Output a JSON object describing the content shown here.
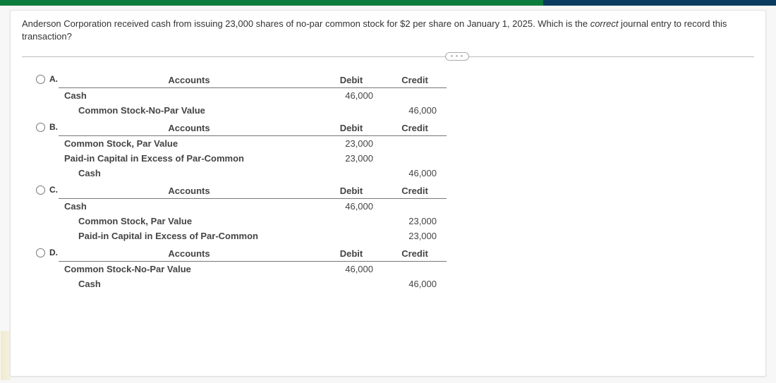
{
  "question": {
    "prefix": "Anderson Corporation received cash from issuing 23,000 shares of no-par common stock for $2 per share on January 1, 2025. Which is the ",
    "italic": "correct",
    "suffix": " journal entry to record this transaction?"
  },
  "divider_pill": "• • •",
  "headers": {
    "accounts": "Accounts",
    "debit": "Debit",
    "credit": "Credit"
  },
  "options": [
    {
      "letter": "A.",
      "rows": [
        {
          "acc": "Cash",
          "indent": 1,
          "debit": "46,000",
          "credit": ""
        },
        {
          "acc": "Common Stock-No-Par Value",
          "indent": 2,
          "debit": "",
          "credit": "46,000"
        }
      ]
    },
    {
      "letter": "B.",
      "rows": [
        {
          "acc": "Common Stock, Par Value",
          "indent": 1,
          "debit": "23,000",
          "credit": ""
        },
        {
          "acc": "Paid-in Capital in Excess of Par-Common",
          "indent": 1,
          "debit": "23,000",
          "credit": ""
        },
        {
          "acc": "Cash",
          "indent": 2,
          "debit": "",
          "credit": "46,000"
        }
      ]
    },
    {
      "letter": "C.",
      "rows": [
        {
          "acc": "Cash",
          "indent": 1,
          "debit": "46,000",
          "credit": ""
        },
        {
          "acc": "Common Stock, Par Value",
          "indent": 2,
          "debit": "",
          "credit": "23,000"
        },
        {
          "acc": "Paid-in Capital in Excess of Par-Common",
          "indent": 2,
          "debit": "",
          "credit": "23,000"
        }
      ]
    },
    {
      "letter": "D.",
      "rows": [
        {
          "acc": "Common Stock-No-Par Value",
          "indent": 1,
          "debit": "46,000",
          "credit": ""
        },
        {
          "acc": "Cash",
          "indent": 2,
          "debit": "",
          "credit": "46,000"
        }
      ]
    }
  ]
}
